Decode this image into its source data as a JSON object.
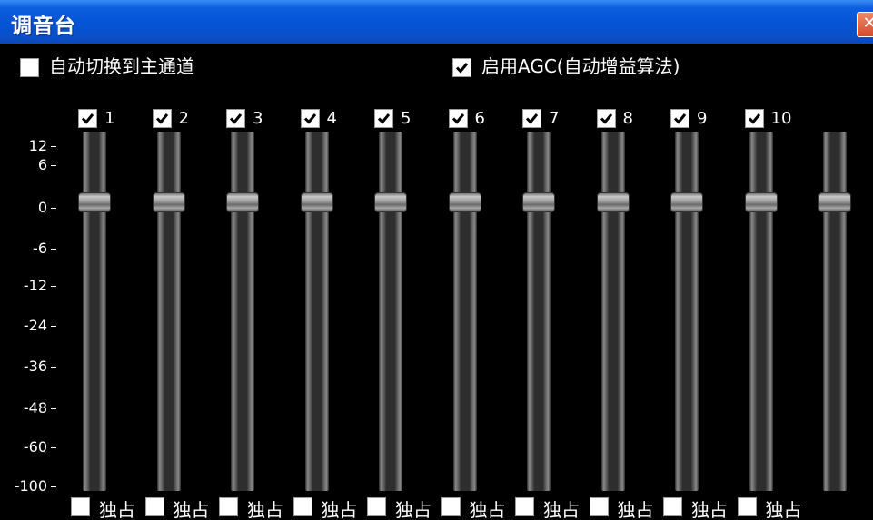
{
  "window": {
    "title": "调音台",
    "close_symbol": "✕"
  },
  "options": {
    "auto_switch_main": {
      "label": "自动切换到主通道",
      "checked": false
    },
    "agc": {
      "label": "启用AGC(自动增益算法)",
      "checked": true
    }
  },
  "channels": [
    {
      "number": "1",
      "enabled": true
    },
    {
      "number": "2",
      "enabled": true
    },
    {
      "number": "3",
      "enabled": true
    },
    {
      "number": "4",
      "enabled": true
    },
    {
      "number": "5",
      "enabled": true
    },
    {
      "number": "6",
      "enabled": true
    },
    {
      "number": "7",
      "enabled": true
    },
    {
      "number": "8",
      "enabled": true
    },
    {
      "number": "9",
      "enabled": true
    },
    {
      "number": "10",
      "enabled": true
    }
  ],
  "scale": [
    "12",
    "6",
    "0",
    "-6",
    "-12",
    "-24",
    "-36",
    "-48",
    "-60",
    "-100"
  ],
  "slider_level": "0",
  "exclusive_label": "独占"
}
